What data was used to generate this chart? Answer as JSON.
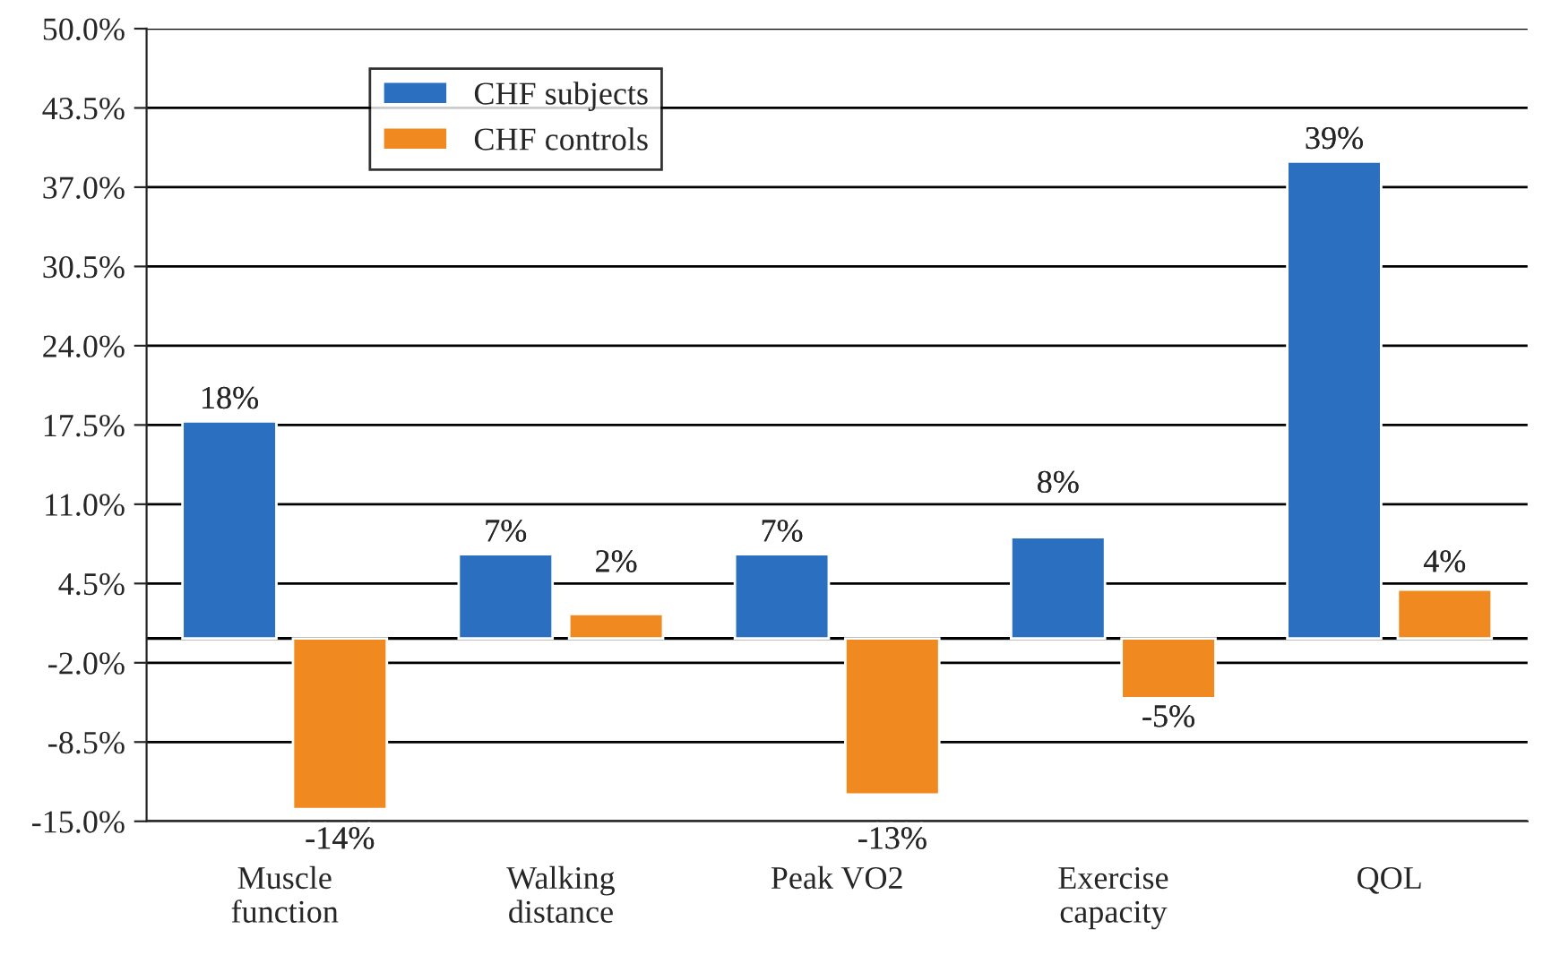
{
  "chart_data": {
    "type": "bar",
    "categories": [
      "Muscle\nfunction",
      "Walking\ndistance",
      "Peak VO2",
      "Exercise\ncapacity",
      "QOL"
    ],
    "series": [
      {
        "name": "CHF subjects",
        "color": "#2a6fc0",
        "values": [
          17.8,
          6.9,
          6.9,
          8.3,
          39.1
        ],
        "value_labels": [
          "18%",
          "7%",
          "7%",
          "8%",
          "39%"
        ]
      },
      {
        "name": "CHF controls",
        "color": "#f08a20",
        "values": [
          -14,
          2,
          -12.8,
          -4.9,
          4
        ],
        "value_labels": [
          "-14%",
          "2%",
          "-13%",
          "-5%",
          "4%"
        ]
      }
    ],
    "ylim": [
      -15,
      50
    ],
    "yticks": [
      {
        "value": -15,
        "label": "-15.0%"
      },
      {
        "value": -8.5,
        "label": "-8.5%"
      },
      {
        "value": -2,
        "label": "-2.0%"
      },
      {
        "value": 4.5,
        "label": "4.5%"
      },
      {
        "value": 11,
        "label": "11.0%"
      },
      {
        "value": 17.5,
        "label": "17.5%"
      },
      {
        "value": 24,
        "label": "24.0%"
      },
      {
        "value": 30.5,
        "label": "30.5%"
      },
      {
        "value": 37,
        "label": "37.0%"
      },
      {
        "value": 43.5,
        "label": "43.5%"
      },
      {
        "value": 50,
        "label": "50.0%"
      }
    ],
    "grid": "y",
    "legend": "top left"
  }
}
